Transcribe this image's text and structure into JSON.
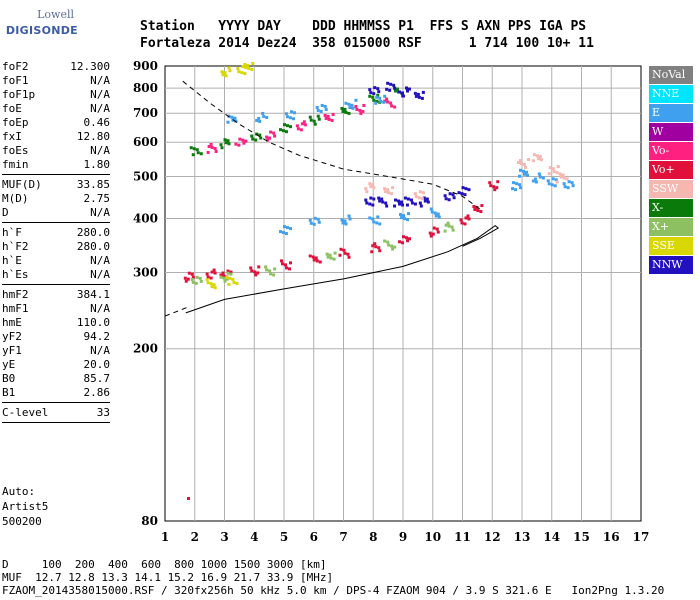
{
  "logo": {
    "line1": "Lowell",
    "line2": "DIGISONDE"
  },
  "header": {
    "row1": "Station   YYYY DAY    DDD HHMMSS P1  FFS S AXN PPS IGA PS",
    "row2": "Fortaleza 2014 Dez24  358 015000 RSF      1 714 100 10+ 11"
  },
  "params": [
    {
      "name": "foF2",
      "value": "12.300"
    },
    {
      "name": "foF1",
      "value": "N/A"
    },
    {
      "name": "foF1p",
      "value": "N/A"
    },
    {
      "name": "foE",
      "value": "N/A"
    },
    {
      "name": "foEp",
      "value": "0.46"
    },
    {
      "name": "fxI",
      "value": "12.80"
    },
    {
      "name": "foEs",
      "value": "N/A"
    },
    {
      "name": "fmin",
      "value": "1.80"
    },
    {
      "sep": true
    },
    {
      "name": "MUF(D)",
      "value": "33.85"
    },
    {
      "name": "M(D)",
      "value": "2.75"
    },
    {
      "name": "D",
      "value": "N/A"
    },
    {
      "sep": true
    },
    {
      "name": "h`F",
      "value": "280.0"
    },
    {
      "name": "h`F2",
      "value": "280.0"
    },
    {
      "name": "h`E",
      "value": "N/A"
    },
    {
      "name": "h`Es",
      "value": "N/A"
    },
    {
      "sep": true
    },
    {
      "name": "hmF2",
      "value": "384.1"
    },
    {
      "name": "hmF1",
      "value": "N/A"
    },
    {
      "name": "hmE",
      "value": "110.0"
    },
    {
      "name": "yF2",
      "value": "94.2"
    },
    {
      "name": "yF1",
      "value": "N/A"
    },
    {
      "name": "yE",
      "value": "20.0"
    },
    {
      "name": "B0",
      "value": "85.7"
    },
    {
      "name": "B1",
      "value": "2.86"
    },
    {
      "sep": true
    },
    {
      "name": "C-level",
      "value": "33"
    },
    {
      "sep": true
    }
  ],
  "extra": [
    "Auto:",
    "Artist5",
    "500200"
  ],
  "footer": {
    "line1": "D     100  200  400  600  800 1000 1500 3000 [km]",
    "line2": "MUF  12.7 12.8 13.3 14.1 15.2 16.9 21.7 33.9 [MHz]",
    "line3": "FZAOM_2014358015000.RSF / 320fx256h 50 kHz 5.0 km / DPS-4 FZAOM 904 / 3.9 S 321.6 E   Ion2Png 1.3.20"
  },
  "legend": [
    {
      "label": "NoVal",
      "color": "#808080"
    },
    {
      "label": "NNE",
      "color": "#00e5ff"
    },
    {
      "label": "E",
      "color": "#3fa0f0"
    },
    {
      "label": "W",
      "color": "#a000a0"
    },
    {
      "label": "Vo-",
      "color": "#ff2080"
    },
    {
      "label": "Vo+",
      "color": "#e0103a"
    },
    {
      "label": "SSW",
      "color": "#f4b8b0"
    },
    {
      "label": "X-",
      "color": "#0a7a0a"
    },
    {
      "label": "X+",
      "color": "#8cc060"
    },
    {
      "label": "SSE",
      "color": "#d8d800"
    },
    {
      "label": "NNW",
      "color": "#2010c0"
    }
  ],
  "chart_data": {
    "type": "scatter",
    "xlim": [
      1,
      17
    ],
    "x_ticks": [
      1,
      2,
      3,
      4,
      5,
      6,
      7,
      8,
      9,
      10,
      11,
      12,
      13,
      14,
      15,
      16,
      17
    ],
    "ylim": [
      80,
      900
    ],
    "y_scale": "log",
    "y_ticks": [
      80,
      200,
      300,
      400,
      500,
      600,
      700,
      800,
      900
    ],
    "grid": true,
    "series": [
      {
        "name": "X-",
        "color": "#0a7a0a",
        "points": [
          [
            2.0,
            575
          ],
          [
            3.0,
            600
          ],
          [
            4.0,
            625
          ],
          [
            5.0,
            650
          ],
          [
            6.0,
            680
          ],
          [
            7.0,
            720
          ],
          [
            8.0,
            760
          ],
          [
            8.8,
            790
          ]
        ]
      },
      {
        "name": "Vo-",
        "color": "#ff2080",
        "points": [
          [
            2.5,
            585
          ],
          [
            3.5,
            605
          ],
          [
            4.5,
            625
          ],
          [
            5.5,
            660
          ],
          [
            6.5,
            690
          ],
          [
            7.5,
            720
          ],
          [
            8.5,
            745
          ]
        ]
      },
      {
        "name": "E",
        "color": "#3fa0f0",
        "points": [
          [
            3.2,
            680
          ],
          [
            4.2,
            690
          ],
          [
            5.2,
            700
          ],
          [
            6.2,
            720
          ],
          [
            7.2,
            740
          ],
          [
            8.2,
            760
          ]
        ]
      },
      {
        "name": "NNW",
        "color": "#2010c0",
        "points": [
          [
            8.0,
            800
          ],
          [
            8.5,
            810
          ],
          [
            9.0,
            790
          ],
          [
            9.5,
            780
          ],
          [
            7.8,
            440
          ],
          [
            8.3,
            440
          ],
          [
            8.8,
            440
          ],
          [
            9.2,
            440
          ],
          [
            9.7,
            440
          ],
          [
            10.5,
            455
          ],
          [
            11.0,
            465
          ]
        ]
      },
      {
        "name": "Vo+",
        "color": "#e0103a",
        "points": [
          [
            1.8,
            295
          ],
          [
            2.5,
            300
          ],
          [
            3.0,
            300
          ],
          [
            4.0,
            305
          ],
          [
            5.0,
            315
          ],
          [
            6.0,
            325
          ],
          [
            7.0,
            335
          ],
          [
            8.0,
            345
          ],
          [
            9.0,
            360
          ],
          [
            10.0,
            375
          ],
          [
            11.0,
            400
          ],
          [
            11.5,
            425
          ],
          [
            12.0,
            480
          ]
        ]
      },
      {
        "name": "E",
        "color": "#3fa0f0",
        "points": [
          [
            5.0,
            380
          ],
          [
            6.0,
            395
          ],
          [
            7.0,
            400
          ],
          [
            8.0,
            400
          ],
          [
            9.0,
            405
          ],
          [
            10.0,
            415
          ],
          [
            12.8,
            480
          ],
          [
            13.0,
            510
          ],
          [
            13.5,
            500
          ],
          [
            14.0,
            490
          ],
          [
            14.5,
            480
          ]
        ]
      },
      {
        "name": "SSW",
        "color": "#f4b8b0",
        "points": [
          [
            7.8,
            475
          ],
          [
            8.5,
            470
          ],
          [
            9.5,
            455
          ],
          [
            13.0,
            540
          ],
          [
            13.5,
            560
          ],
          [
            14.0,
            520
          ],
          [
            14.3,
            500
          ]
        ]
      },
      {
        "name": "X+",
        "color": "#8cc060",
        "points": [
          [
            2.0,
            290
          ],
          [
            3.0,
            295
          ],
          [
            4.5,
            305
          ],
          [
            6.5,
            330
          ],
          [
            8.5,
            350
          ],
          [
            10.5,
            385
          ]
        ]
      },
      {
        "name": "SSE",
        "color": "#d8d800",
        "points": [
          [
            3.0,
            880
          ],
          [
            3.5,
            890
          ],
          [
            3.8,
            900
          ],
          [
            2.5,
            285
          ],
          [
            3.2,
            290
          ]
        ]
      }
    ]
  }
}
